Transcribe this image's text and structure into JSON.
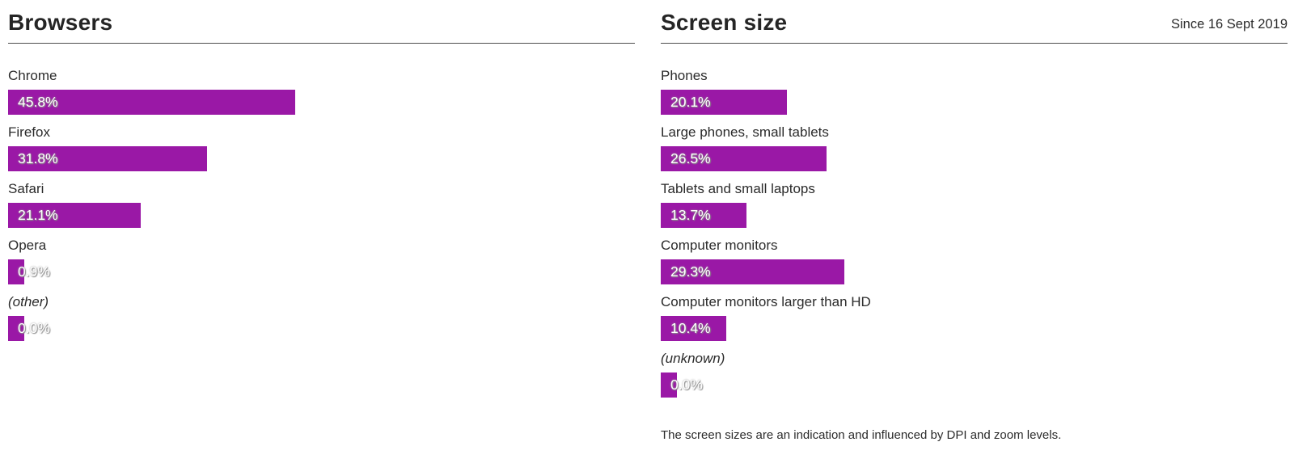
{
  "colors": {
    "bar": "#9a18a6",
    "rule": "#4d4d4d",
    "text": "#252525"
  },
  "panels": [
    {
      "title": "Browsers",
      "note": "",
      "rows": [
        {
          "label": "Chrome",
          "value": "45.8%",
          "pct": 45.8,
          "italic": false
        },
        {
          "label": "Firefox",
          "value": "31.8%",
          "pct": 31.8,
          "italic": false
        },
        {
          "label": "Safari",
          "value": "21.1%",
          "pct": 21.1,
          "italic": false
        },
        {
          "label": "Opera",
          "value": "0.9%",
          "pct": 0.9,
          "italic": false
        },
        {
          "label": "(other)",
          "value": "0.0%",
          "pct": 0.0,
          "italic": true
        }
      ],
      "footer": ""
    },
    {
      "title": "Screen size",
      "note": "Since 16 Sept 2019",
      "rows": [
        {
          "label": "Phones",
          "value": "20.1%",
          "pct": 20.1,
          "italic": false
        },
        {
          "label": "Large phones, small tablets",
          "value": "26.5%",
          "pct": 26.5,
          "italic": false
        },
        {
          "label": "Tablets and small laptops",
          "value": "13.7%",
          "pct": 13.7,
          "italic": false
        },
        {
          "label": "Computer monitors",
          "value": "29.3%",
          "pct": 29.3,
          "italic": false
        },
        {
          "label": "Computer monitors larger than HD",
          "value": "10.4%",
          "pct": 10.4,
          "italic": false
        },
        {
          "label": "(unknown)",
          "value": "0.0%",
          "pct": 0.0,
          "italic": true
        }
      ],
      "footer": "The screen sizes are an indication and influenced by DPI and zoom levels."
    }
  ],
  "chart_data": [
    {
      "type": "bar",
      "orientation": "horizontal",
      "title": "Browsers",
      "categories": [
        "Chrome",
        "Firefox",
        "Safari",
        "Opera",
        "(other)"
      ],
      "values": [
        45.8,
        31.8,
        21.1,
        0.9,
        0.0
      ],
      "unit": "%",
      "xlim": [
        0,
        100
      ],
      "grid": false,
      "bar_color": "#9a18a6",
      "value_labels": [
        "45.8%",
        "31.8%",
        "21.1%",
        "0.9%",
        "0.0%"
      ]
    },
    {
      "type": "bar",
      "orientation": "horizontal",
      "title": "Screen size",
      "subtitle": "Since 16 Sept 2019",
      "categories": [
        "Phones",
        "Large phones, small tablets",
        "Tablets and small laptops",
        "Computer monitors",
        "Computer monitors larger than HD",
        "(unknown)"
      ],
      "values": [
        20.1,
        26.5,
        13.7,
        29.3,
        10.4,
        0.0
      ],
      "unit": "%",
      "xlim": [
        0,
        100
      ],
      "grid": false,
      "bar_color": "#9a18a6",
      "value_labels": [
        "20.1%",
        "26.5%",
        "13.7%",
        "29.3%",
        "10.4%",
        "0.0%"
      ],
      "annotation": "The screen sizes are an indication and influenced by DPI and zoom levels."
    }
  ]
}
